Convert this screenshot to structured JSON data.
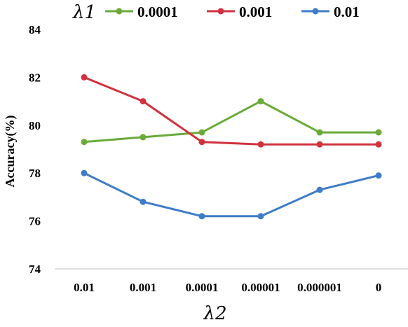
{
  "chart_data": {
    "type": "line",
    "legend_title": "λ1",
    "xlabel": "λ2",
    "ylabel": "Accuracy(%)",
    "categories": [
      "0.01",
      "0.001",
      "0.0001",
      "0.00001",
      "0.000001",
      "0"
    ],
    "ylim": [
      74,
      84
    ],
    "yticks": [
      74,
      76,
      78,
      80,
      82,
      84
    ],
    "grid": false,
    "legend_position": "top",
    "series": [
      {
        "name": "0.0001",
        "color": "#6aaa3a",
        "values": [
          79.3,
          79.5,
          79.7,
          81.0,
          79.7,
          79.7
        ]
      },
      {
        "name": "0.001",
        "color": "#d0323f",
        "values": [
          82.0,
          81.0,
          79.3,
          79.2,
          79.2,
          79.2
        ]
      },
      {
        "name": "0.01",
        "color": "#3f7cc8",
        "values": [
          78.0,
          76.8,
          76.2,
          76.2,
          77.3,
          77.9
        ]
      }
    ]
  }
}
